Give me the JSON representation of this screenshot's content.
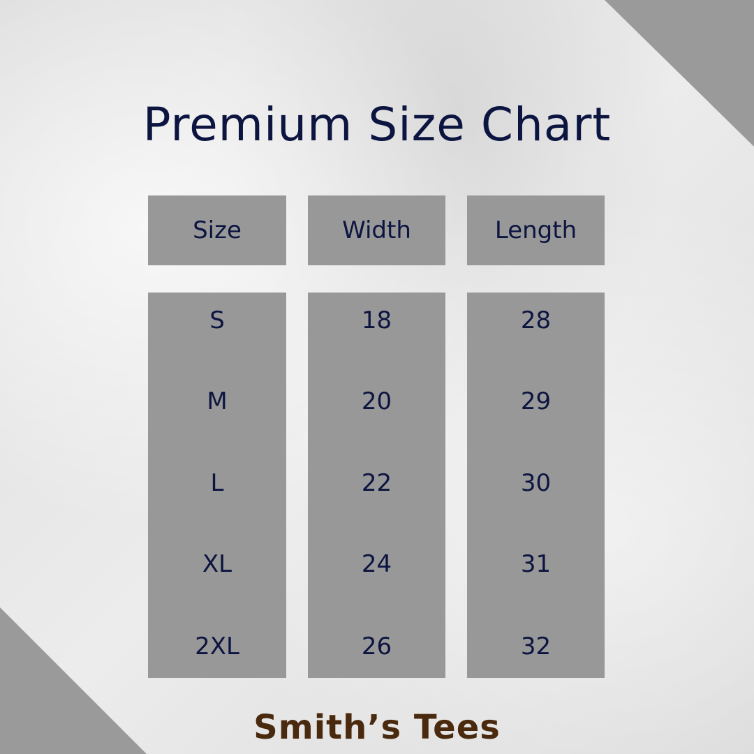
{
  "title": "Premium Size Chart",
  "headers": [
    "Size",
    "Width",
    "Length"
  ],
  "columns": [
    [
      "S",
      "M",
      "L",
      "XL",
      "2XL"
    ],
    [
      "18",
      "20",
      "22",
      "24",
      "26"
    ],
    [
      "28",
      "29",
      "30",
      "31",
      "32"
    ]
  ],
  "brand": "Smith’s Tees",
  "colors": {
    "title": "#0c1440",
    "cell_bg": "#989898",
    "brand": "#4a2a0e",
    "corner": "#9a9a9a"
  }
}
